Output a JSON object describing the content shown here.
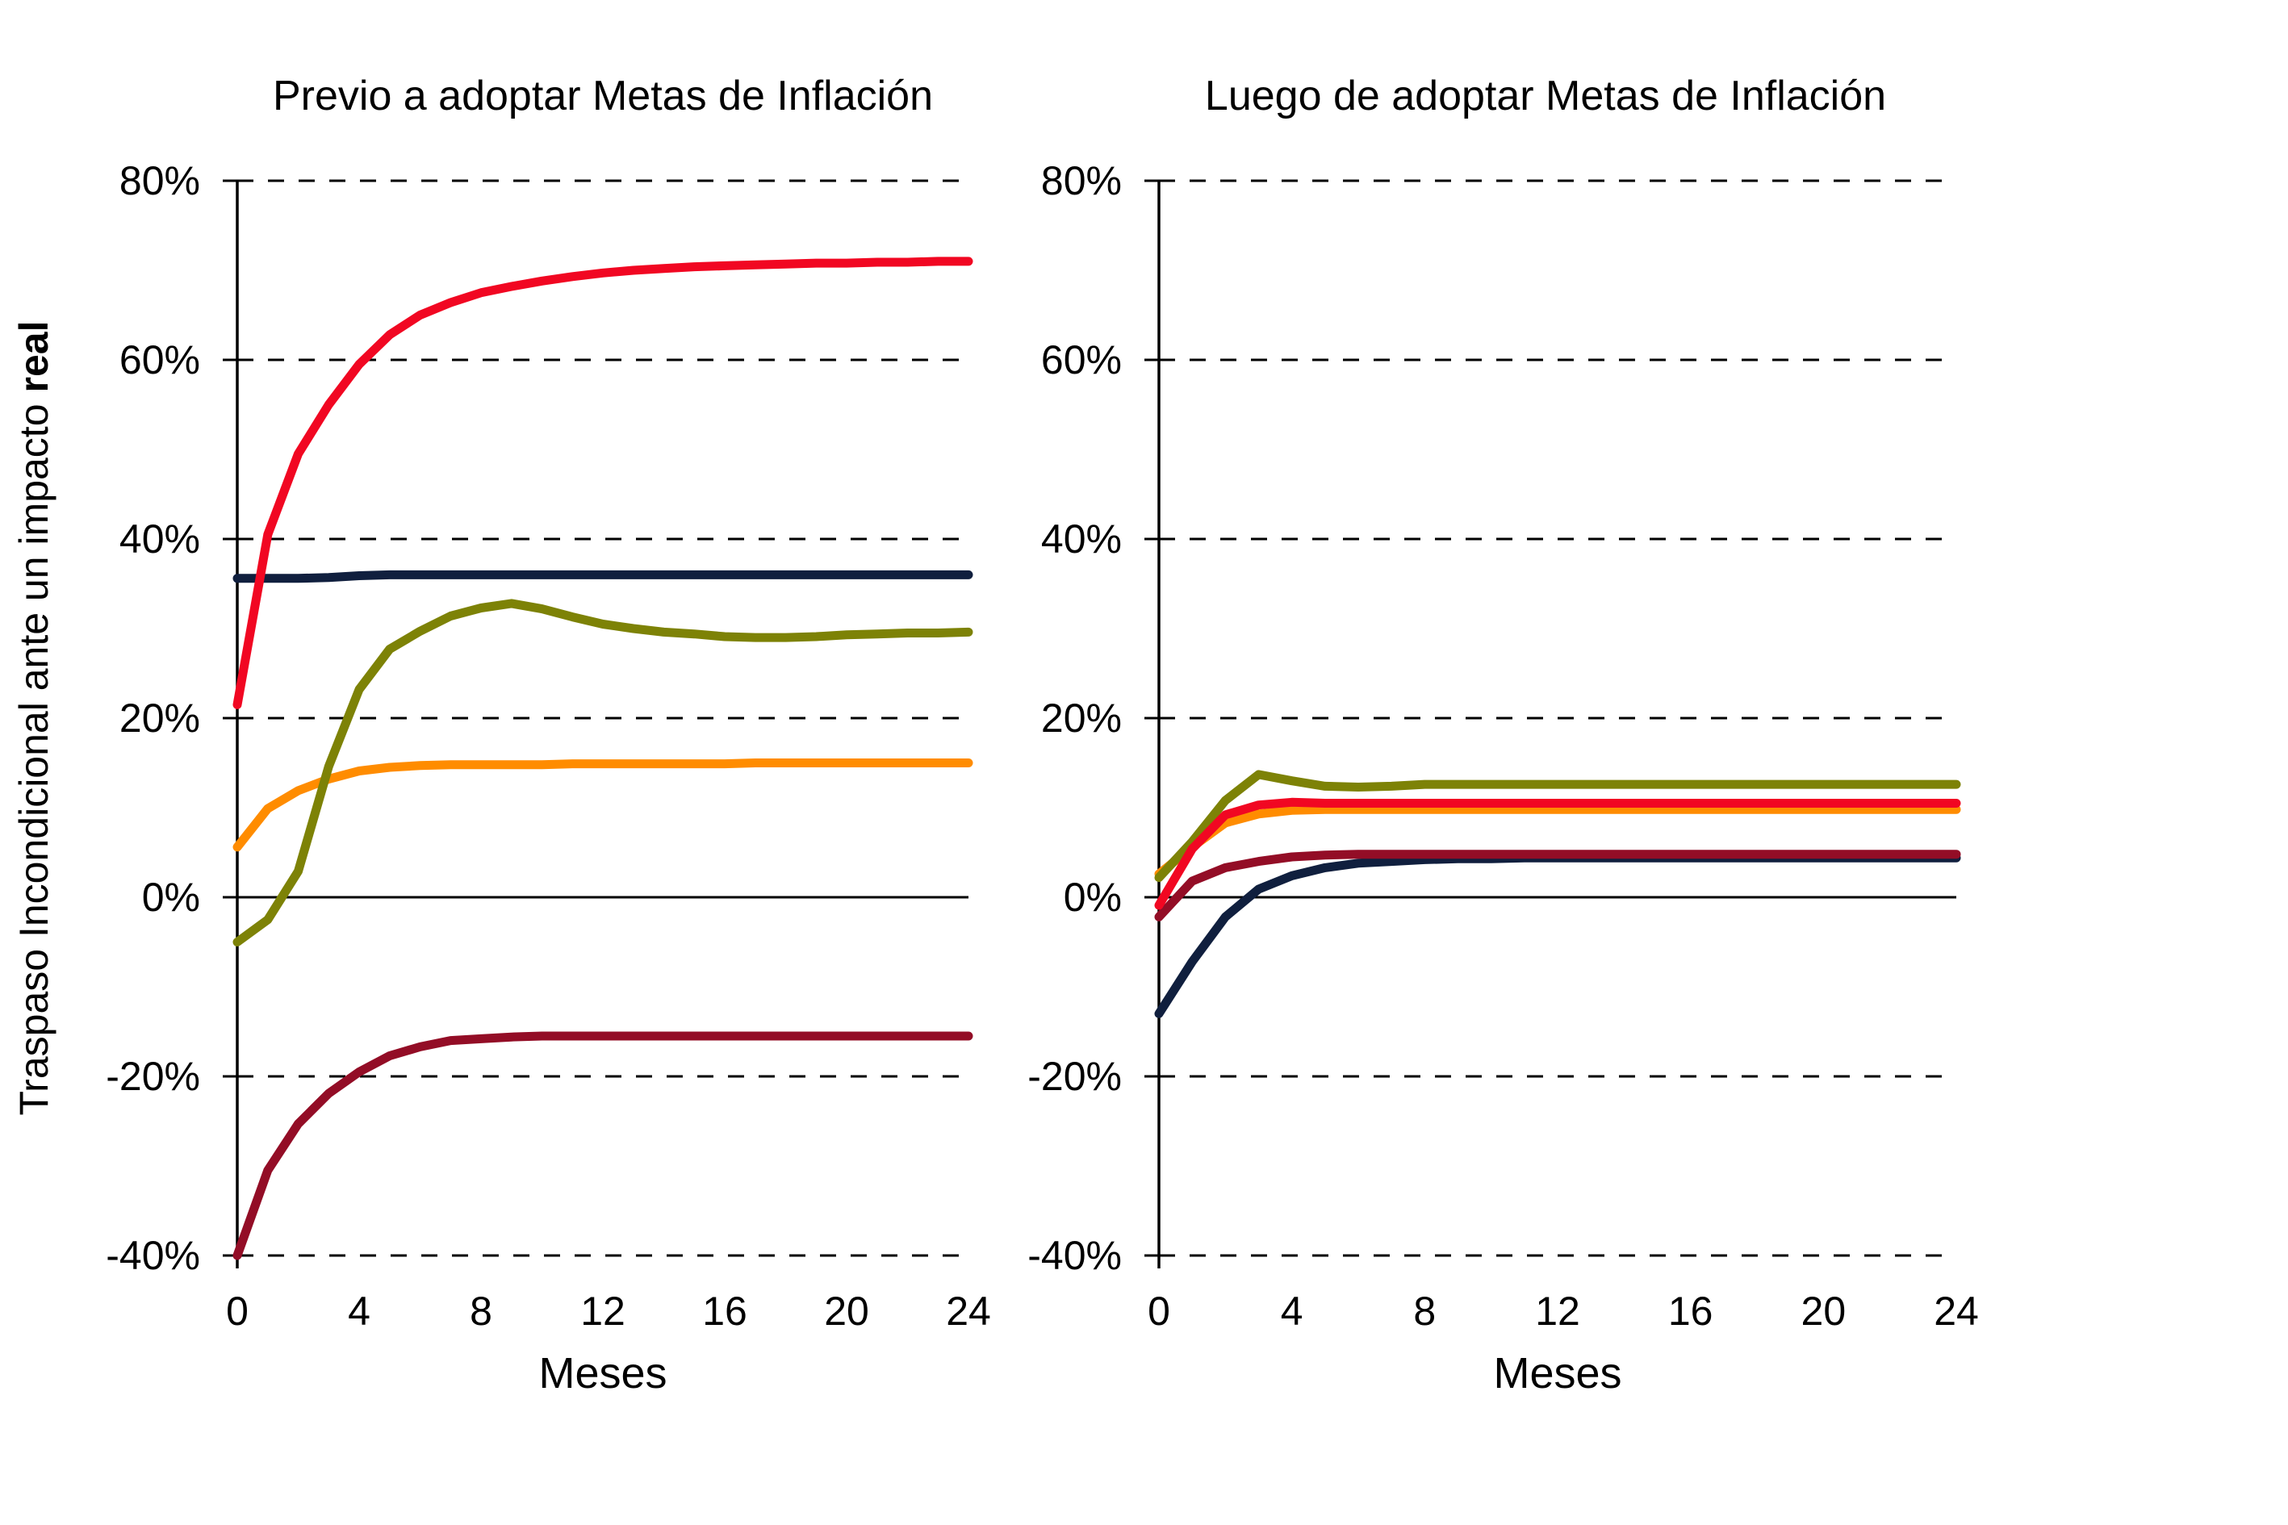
{
  "page": {
    "background": "#FFFFFF",
    "text_color": "#000000"
  },
  "ylabel": {
    "main": "Traspaso Incondicional ante un impacto",
    "bold": "real"
  },
  "chart_data": [
    {
      "type": "line",
      "title": "Previo a adoptar Metas de Inflación",
      "xlabel": "Meses",
      "xlim": [
        0,
        24
      ],
      "ylim": [
        -40,
        80
      ],
      "grid": "horizontal-dashed-black, zero-line-solid",
      "legend": "none",
      "x_ticks": [
        0,
        4,
        8,
        12,
        16,
        20,
        24
      ],
      "y_ticks": [
        {
          "value": 80,
          "label": "80%"
        },
        {
          "value": 60,
          "label": "60%"
        },
        {
          "value": 40,
          "label": "40%"
        },
        {
          "value": 20,
          "label": "20%"
        },
        {
          "value": 0,
          "label": "0%"
        },
        {
          "value": -20,
          "label": "-20%"
        },
        {
          "value": -40,
          "label": "-40%"
        }
      ],
      "months": [
        0,
        1,
        2,
        3,
        4,
        5,
        6,
        7,
        8,
        9,
        10,
        11,
        12,
        13,
        14,
        15,
        16,
        17,
        18,
        19,
        20,
        21,
        22,
        23,
        24
      ],
      "series": [
        {
          "id": "serie-azul-marino",
          "color": "#101F3E",
          "values": [
            35.6,
            35.6,
            35.6,
            35.7,
            35.9,
            36.0,
            36.0,
            36.0,
            36.0,
            36.0,
            36.0,
            36.0,
            36.0,
            36.0,
            36.0,
            36.0,
            36.0,
            36.0,
            36.0,
            36.0,
            36.0,
            36.0,
            36.0,
            36.0,
            36.0
          ]
        },
        {
          "id": "serie-granate",
          "color": "#930D26",
          "values": [
            -40.0,
            -30.5,
            -25.3,
            -21.9,
            -19.5,
            -17.7,
            -16.7,
            -16.0,
            -15.8,
            -15.6,
            -15.5,
            -15.5,
            -15.5,
            -15.5,
            -15.5,
            -15.5,
            -15.5,
            -15.5,
            -15.5,
            -15.5,
            -15.5,
            -15.5,
            -15.5,
            -15.5,
            -15.5
          ]
        },
        {
          "id": "serie-naranja",
          "color": "#FF8C00",
          "values": [
            5.6,
            9.9,
            11.9,
            13.2,
            14.1,
            14.5,
            14.7,
            14.8,
            14.8,
            14.8,
            14.8,
            14.9,
            14.9,
            14.9,
            14.9,
            14.9,
            14.9,
            15.0,
            15.0,
            15.0,
            15.0,
            15.0,
            15.0,
            15.0,
            15.0
          ]
        },
        {
          "id": "serie-oliva",
          "color": "#7D8206",
          "values": [
            -5.0,
            -2.5,
            2.9,
            14.6,
            23.2,
            27.7,
            29.7,
            31.4,
            32.3,
            32.8,
            32.2,
            31.3,
            30.5,
            30.0,
            29.6,
            29.4,
            29.1,
            29.0,
            29.0,
            29.1,
            29.3,
            29.4,
            29.5,
            29.5,
            29.6
          ]
        },
        {
          "id": "serie-roja",
          "color": "#F10722",
          "values": [
            21.5,
            40.5,
            49.5,
            55.0,
            59.5,
            62.8,
            65.0,
            66.4,
            67.5,
            68.2,
            68.8,
            69.3,
            69.7,
            70.0,
            70.2,
            70.4,
            70.5,
            70.6,
            70.7,
            70.8,
            70.8,
            70.9,
            70.9,
            71.0,
            71.0
          ]
        }
      ]
    },
    {
      "type": "line",
      "title": "Luego de adoptar Metas de Inflación",
      "xlabel": "Meses",
      "xlim": [
        0,
        24
      ],
      "ylim": [
        -40,
        80
      ],
      "grid": "horizontal-dashed-black, zero-line-solid",
      "legend": "none",
      "x_ticks": [
        0,
        4,
        8,
        12,
        16,
        20,
        24
      ],
      "y_ticks": [
        {
          "value": 80,
          "label": "80%"
        },
        {
          "value": 60,
          "label": "60%"
        },
        {
          "value": 40,
          "label": "40%"
        },
        {
          "value": 20,
          "label": "20%"
        },
        {
          "value": 0,
          "label": "0%"
        },
        {
          "value": -20,
          "label": "-20%"
        },
        {
          "value": -40,
          "label": "-40%"
        }
      ],
      "months": [
        0,
        1,
        2,
        3,
        4,
        5,
        6,
        7,
        8,
        9,
        10,
        11,
        12,
        13,
        14,
        15,
        16,
        17,
        18,
        19,
        20,
        21,
        22,
        23,
        24
      ],
      "series": [
        {
          "id": "serie-azul-marino",
          "color": "#101F3E",
          "values": [
            -13.0,
            -7.2,
            -2.2,
            0.9,
            2.4,
            3.3,
            3.8,
            4.0,
            4.2,
            4.3,
            4.3,
            4.4,
            4.4,
            4.4,
            4.4,
            4.4,
            4.4,
            4.4,
            4.4,
            4.4,
            4.4,
            4.4,
            4.4,
            4.4,
            4.4
          ]
        },
        {
          "id": "serie-granate",
          "color": "#930D26",
          "values": [
            -2.2,
            1.8,
            3.3,
            4.0,
            4.5,
            4.7,
            4.8,
            4.8,
            4.8,
            4.8,
            4.8,
            4.8,
            4.8,
            4.8,
            4.8,
            4.8,
            4.8,
            4.8,
            4.8,
            4.8,
            4.8,
            4.8,
            4.8,
            4.8,
            4.8
          ]
        },
        {
          "id": "serie-naranja",
          "color": "#FF8C00",
          "values": [
            2.6,
            5.6,
            8.3,
            9.3,
            9.7,
            9.8,
            9.8,
            9.8,
            9.8,
            9.8,
            9.8,
            9.8,
            9.8,
            9.8,
            9.8,
            9.8,
            9.8,
            9.8,
            9.8,
            9.8,
            9.8,
            9.8,
            9.8,
            9.8,
            9.8
          ]
        },
        {
          "id": "serie-oliva",
          "color": "#7D8206",
          "values": [
            2.2,
            6.2,
            10.8,
            13.7,
            13.0,
            12.4,
            12.3,
            12.4,
            12.6,
            12.6,
            12.6,
            12.6,
            12.6,
            12.6,
            12.6,
            12.6,
            12.6,
            12.6,
            12.6,
            12.6,
            12.6,
            12.6,
            12.6,
            12.6,
            12.6
          ]
        },
        {
          "id": "serie-roja",
          "color": "#F10722",
          "values": [
            -0.9,
            5.4,
            9.2,
            10.3,
            10.6,
            10.5,
            10.5,
            10.5,
            10.5,
            10.5,
            10.5,
            10.5,
            10.5,
            10.5,
            10.5,
            10.5,
            10.5,
            10.5,
            10.5,
            10.5,
            10.5,
            10.5,
            10.5,
            10.5,
            10.5
          ]
        }
      ]
    }
  ]
}
